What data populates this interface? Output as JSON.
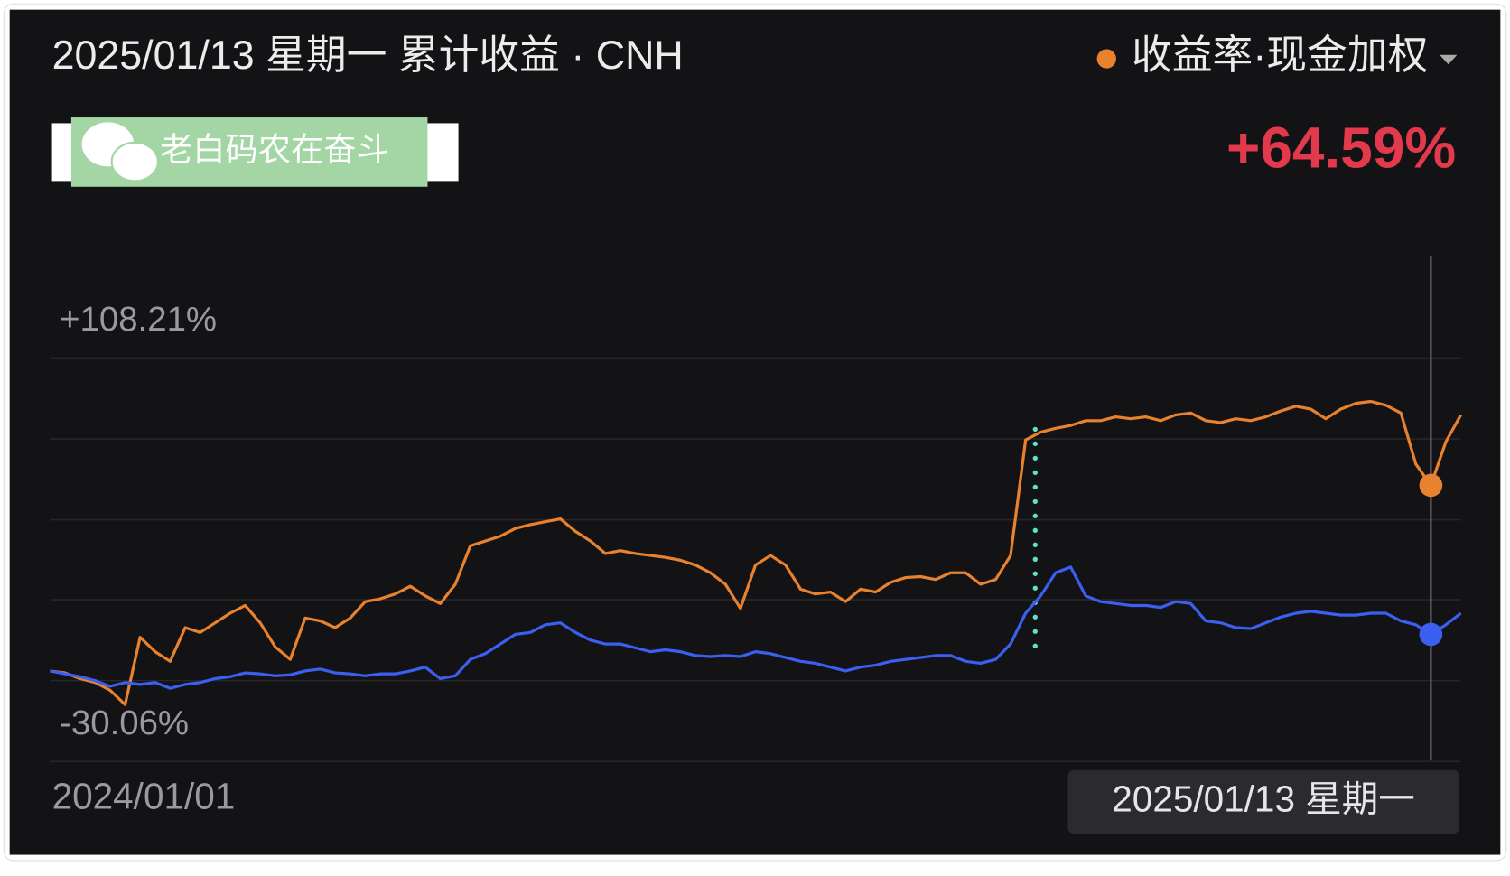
{
  "chart_data": {
    "type": "line",
    "title": "2025/01/13 星期一 累计收益 · CNH",
    "watermark": "老白码农在奋斗",
    "legend": "top-right",
    "ylim": [
      -30.06,
      108.21
    ],
    "yticks": [
      {
        "value": 108.21,
        "label": "+108.21%"
      },
      {
        "value": -30.06,
        "label": "-30.06%"
      }
    ],
    "grid": true,
    "categories": [
      "2024/01/01",
      null,
      null,
      null,
      null,
      null,
      null,
      null,
      null,
      null,
      null,
      null,
      null,
      null,
      null,
      null,
      null,
      null,
      null,
      null,
      null,
      null,
      null,
      null,
      null,
      null,
      null,
      null,
      null,
      null,
      null,
      null,
      null,
      null,
      null,
      null,
      null,
      null,
      null,
      null,
      null,
      null,
      null,
      null,
      null,
      null,
      null,
      null,
      null,
      null,
      null,
      null,
      null,
      null,
      null,
      null,
      null,
      null,
      null,
      null,
      null,
      null,
      null,
      null,
      null,
      null,
      null,
      null,
      null,
      null,
      null,
      null,
      null,
      null,
      null,
      null,
      null,
      null,
      null,
      null,
      null,
      null,
      null,
      null,
      null,
      null,
      null,
      null,
      null,
      null,
      null,
      null,
      "2025/01/13 星期一",
      null,
      null
    ],
    "series": [
      {
        "name": "收益率·现金加权",
        "color": "#e8822e",
        "values": [
          0.97,
          0.31,
          -1.67,
          -2.99,
          -5.63,
          -10.58,
          12.52,
          7.57,
          4.27,
          15.82,
          14.17,
          17.47,
          20.77,
          23.41,
          17.47,
          9.22,
          4.93,
          19.12,
          18.13,
          15.82,
          19.12,
          24.73,
          25.72,
          27.37,
          30.01,
          26.71,
          24.07,
          30.67,
          43.87,
          45.52,
          47.17,
          49.81,
          51.13,
          52.12,
          53.11,
          48.82,
          45.52,
          41.23,
          42.22,
          41.23,
          40.57,
          39.91,
          38.92,
          37.27,
          34.63,
          30.67,
          22.42,
          37.27,
          40.57,
          37.27,
          29.02,
          27.37,
          28.03,
          24.73,
          29.02,
          28.03,
          31.33,
          32.98,
          33.31,
          32.32,
          34.63,
          34.63,
          30.67,
          32.32,
          40.57,
          80.17,
          82.81,
          84.13,
          85.12,
          86.77,
          86.77,
          88.09,
          87.43,
          88.09,
          86.77,
          88.75,
          89.41,
          86.77,
          86.11,
          87.43,
          86.77,
          88.09,
          90.07,
          91.72,
          90.73,
          87.43,
          90.73,
          92.71,
          93.37,
          92.05,
          89.41,
          71.92,
          64.59,
          79.51,
          88.75
        ],
        "value_labels": [
          null,
          null,
          null,
          null,
          null,
          null,
          null,
          null,
          null,
          null,
          null,
          null,
          null,
          null,
          null,
          null,
          null,
          null,
          null,
          null,
          null,
          null,
          null,
          null,
          null,
          null,
          null,
          null,
          null,
          null,
          null,
          null,
          null,
          null,
          null,
          null,
          null,
          null,
          null,
          null,
          null,
          null,
          null,
          null,
          null,
          null,
          null,
          null,
          null,
          null,
          null,
          null,
          null,
          null,
          null,
          null,
          null,
          null,
          null,
          null,
          null,
          null,
          null,
          null,
          null,
          null,
          null,
          null,
          null,
          null,
          null,
          null,
          null,
          null,
          null,
          null,
          null,
          null,
          null,
          null,
          null,
          null,
          null,
          null,
          null,
          null,
          null,
          null,
          null,
          null,
          null,
          null,
          "+64.59%",
          null,
          null
        ]
      },
      {
        "color": "#3b5ff0",
        "values": [
          0.97,
          -0.02,
          -1.01,
          -2.33,
          -4.31,
          -2.99,
          -3.65,
          -2.99,
          -4.97,
          -3.65,
          -2.99,
          -1.67,
          -1.01,
          0.31,
          -0.02,
          -0.68,
          -0.35,
          0.97,
          1.63,
          0.31,
          -0.02,
          -0.68,
          -0.02,
          -0.02,
          0.97,
          2.29,
          -1.67,
          -0.68,
          4.93,
          6.91,
          10.21,
          13.51,
          14.17,
          16.81,
          17.47,
          14.17,
          11.53,
          10.21,
          10.21,
          8.89,
          7.57,
          8.23,
          7.57,
          6.25,
          5.92,
          6.25,
          5.92,
          7.57,
          6.91,
          5.59,
          4.27,
          3.61,
          2.29,
          0.97,
          2.29,
          2.95,
          4.27,
          4.93,
          5.59,
          6.25,
          6.25,
          4.27,
          3.61,
          4.93,
          10.21,
          20.77,
          26.71,
          34.63,
          36.61,
          26.71,
          24.73,
          24.07,
          23.41,
          23.41,
          22.75,
          24.73,
          24.07,
          18.13,
          17.47,
          15.82,
          15.49,
          17.47,
          19.45,
          20.77,
          21.43,
          20.77,
          20.11,
          20.11,
          20.77,
          20.77,
          18.13,
          16.81,
          13.51,
          16.81,
          20.77
        ]
      }
    ]
  }
}
